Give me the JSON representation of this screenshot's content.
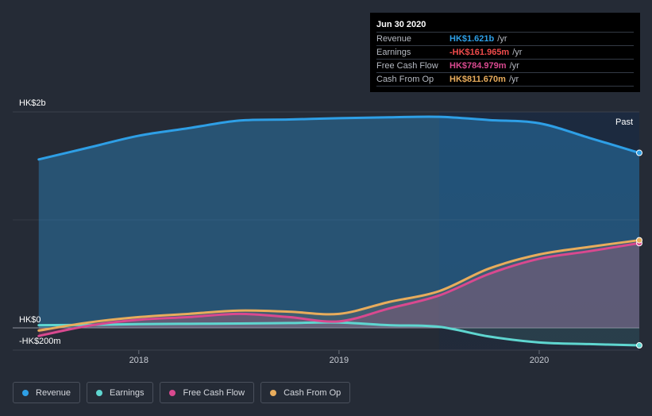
{
  "tooltip": {
    "date": "Jun 30 2020",
    "rows": [
      {
        "label": "Revenue",
        "value": "HK$1.621b",
        "unit": "/yr",
        "color": "#2e9fe6"
      },
      {
        "label": "Earnings",
        "value": "-HK$161.965m",
        "unit": "/yr",
        "color": "#ef4b4b"
      },
      {
        "label": "Free Cash Flow",
        "value": "HK$784.979m",
        "unit": "/yr",
        "color": "#d9498f"
      },
      {
        "label": "Cash From Op",
        "value": "HK$811.670m",
        "unit": "/yr",
        "color": "#e8ac5c"
      }
    ]
  },
  "chart_data": {
    "type": "area",
    "title": "",
    "xlabel": "",
    "ylabel": "",
    "y_tick_labels": {
      "top": "HK$2b",
      "zero": "HK$0",
      "bottom": "-HK$200m"
    },
    "x_tick_labels": [
      "2018",
      "2019",
      "2020"
    ],
    "x_ticks": [
      2018.0,
      2019.0,
      2020.0
    ],
    "xlim": [
      2017.37,
      2020.5
    ],
    "ylim": [
      -200,
      2000
    ],
    "past_label": "Past",
    "past_start": 2019.5,
    "units": "HK$ millions",
    "series": [
      {
        "name": "Revenue",
        "color": "#2e9fe6",
        "x": [
          2017.5,
          2017.75,
          2018.0,
          2018.25,
          2018.5,
          2018.75,
          2019.0,
          2019.25,
          2019.5,
          2019.75,
          2020.0,
          2020.25,
          2020.5
        ],
        "values": [
          1560,
          1670,
          1780,
          1850,
          1920,
          1930,
          1942,
          1950,
          1955,
          1925,
          1895,
          1760,
          1621
        ]
      },
      {
        "name": "Earnings",
        "color": "#5fd6d0",
        "x": [
          2017.5,
          2017.75,
          2018.0,
          2018.25,
          2018.5,
          2018.75,
          2019.0,
          2019.25,
          2019.5,
          2019.75,
          2020.0,
          2020.25,
          2020.5
        ],
        "values": [
          25,
          28,
          35,
          38,
          40,
          45,
          50,
          25,
          10,
          -80,
          -135,
          -150,
          -162
        ]
      },
      {
        "name": "Free Cash Flow",
        "color": "#d9498f",
        "x": [
          2017.5,
          2017.75,
          2018.0,
          2018.25,
          2018.5,
          2018.75,
          2019.0,
          2019.25,
          2019.5,
          2019.75,
          2020.0,
          2020.25,
          2020.5
        ],
        "values": [
          -75,
          20,
          75,
          100,
          130,
          100,
          60,
          180,
          300,
          500,
          640,
          710,
          785
        ]
      },
      {
        "name": "Cash From Op",
        "color": "#e8ac5c",
        "x": [
          2017.5,
          2017.75,
          2018.0,
          2018.25,
          2018.5,
          2018.75,
          2019.0,
          2019.25,
          2019.5,
          2019.75,
          2020.0,
          2020.25,
          2020.5
        ],
        "values": [
          -25,
          50,
          100,
          130,
          160,
          150,
          130,
          240,
          340,
          550,
          680,
          750,
          812
        ]
      }
    ]
  },
  "legend": [
    {
      "label": "Revenue",
      "color": "#2e9fe6"
    },
    {
      "label": "Earnings",
      "color": "#5fd6d0"
    },
    {
      "label": "Free Cash Flow",
      "color": "#d9498f"
    },
    {
      "label": "Cash From Op",
      "color": "#e8ac5c"
    }
  ]
}
